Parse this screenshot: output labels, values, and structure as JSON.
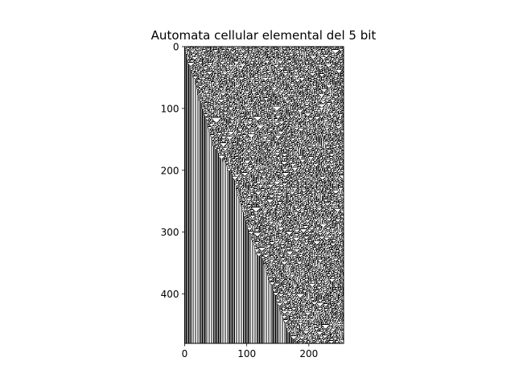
{
  "chart_data": {
    "type": "heatmap",
    "title": "Automata cellular elemental del 5 bit",
    "xlabel": "",
    "ylabel": "",
    "x_range": [
      0,
      256
    ],
    "y_range": [
      0,
      480
    ],
    "y_inverted": true,
    "x_ticks": [
      0,
      100,
      200
    ],
    "y_ticks": [
      0,
      100,
      200,
      300,
      400
    ],
    "grid": false,
    "legend": "none",
    "rule": 30,
    "width_cells": 256,
    "generations": 480,
    "colors": {
      "alive": "#000000",
      "dead": "#ffffff",
      "axes": "#000000"
    }
  }
}
